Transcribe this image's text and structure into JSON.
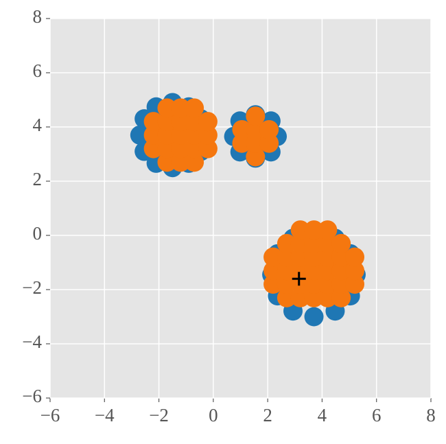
{
  "chart_data": {
    "type": "scatter",
    "xlim": [
      -6,
      8
    ],
    "ylim": [
      -6,
      8
    ],
    "xticks": [
      {
        "value": -6,
        "label": "−6"
      },
      {
        "value": -4,
        "label": "−4"
      },
      {
        "value": -2,
        "label": "−2"
      },
      0,
      2,
      4,
      6,
      8
    ],
    "yticks": [
      {
        "value": -6,
        "label": "−6"
      },
      {
        "value": -4,
        "label": "−4"
      },
      {
        "value": -2,
        "label": "−2"
      },
      0,
      2,
      4,
      6,
      8
    ],
    "grid": true,
    "series": [
      {
        "color": "#1f77b4",
        "marker": "circle",
        "x": [
          -0.3,
          -0.46,
          -0.9,
          -1.5,
          -2.1,
          -2.54,
          -2.7,
          -2.54,
          -2.1,
          -1.5,
          -0.9,
          -0.46,
          2.35,
          2.12,
          1.55,
          0.98,
          0.75,
          0.98,
          1.55,
          2.12,
          5.25,
          5.04,
          4.48,
          3.7,
          2.93,
          2.36,
          2.15,
          2.36,
          2.93,
          3.7,
          4.48,
          5.04
        ],
        "values": [
          3.7,
          4.3,
          4.74,
          4.9,
          4.74,
          4.3,
          3.7,
          3.1,
          2.66,
          2.5,
          2.66,
          3.1,
          3.65,
          4.22,
          4.45,
          4.22,
          3.65,
          3.08,
          2.85,
          3.08,
          -1.45,
          -0.68,
          -0.11,
          0.1,
          -0.11,
          -0.68,
          -1.45,
          -2.23,
          -2.79,
          -3.0,
          -2.79,
          -2.23
        ]
      },
      {
        "color": "#f5770f",
        "marker": "circle",
        "x": [
          2.2,
          2.2,
          2.2,
          2.7,
          2.7,
          2.7,
          2.7,
          2.7,
          3.2,
          3.2,
          3.2,
          3.2,
          3.2,
          3.2,
          3.7,
          3.7,
          3.7,
          3.7,
          3.7,
          3.7,
          4.2,
          4.2,
          4.2,
          4.2,
          4.2,
          4.2,
          4.7,
          4.7,
          4.7,
          4.7,
          4.7,
          5.2,
          5.2,
          5.2,
          -2.2,
          -2.2,
          -2.2,
          -1.7,
          -1.7,
          -1.7,
          -1.7,
          -1.7,
          -1.2,
          -1.2,
          -1.2,
          -1.2,
          -1.2,
          -0.7,
          -0.7,
          -0.7,
          -0.7,
          -0.7,
          -0.2,
          -0.2,
          -0.2,
          1.05,
          1.05,
          1.55,
          1.55,
          1.55,
          1.55,
          2.05,
          2.05
        ],
        "values": [
          -1.8,
          -1.3,
          -0.8,
          -2.3,
          -1.8,
          -1.3,
          -0.8,
          -0.3,
          -2.3,
          -1.8,
          -1.3,
          -0.8,
          -0.3,
          0.2,
          -2.3,
          -1.8,
          -1.3,
          -0.8,
          -0.3,
          0.2,
          -2.3,
          -1.8,
          -1.3,
          -0.8,
          -0.3,
          0.2,
          -2.3,
          -1.8,
          -1.3,
          -0.8,
          -0.3,
          -1.8,
          -1.3,
          -0.8,
          3.2,
          3.7,
          4.2,
          2.7,
          3.2,
          3.7,
          4.2,
          4.7,
          2.7,
          3.2,
          3.7,
          4.2,
          4.7,
          2.7,
          3.2,
          3.7,
          4.2,
          4.7,
          3.2,
          3.7,
          4.2,
          3.4,
          3.9,
          2.9,
          3.4,
          3.9,
          4.4,
          3.4,
          3.9
        ]
      },
      {
        "color": "#000000",
        "marker": "plus",
        "x": [
          3.15
        ],
        "values": [
          -1.6
        ]
      }
    ]
  }
}
